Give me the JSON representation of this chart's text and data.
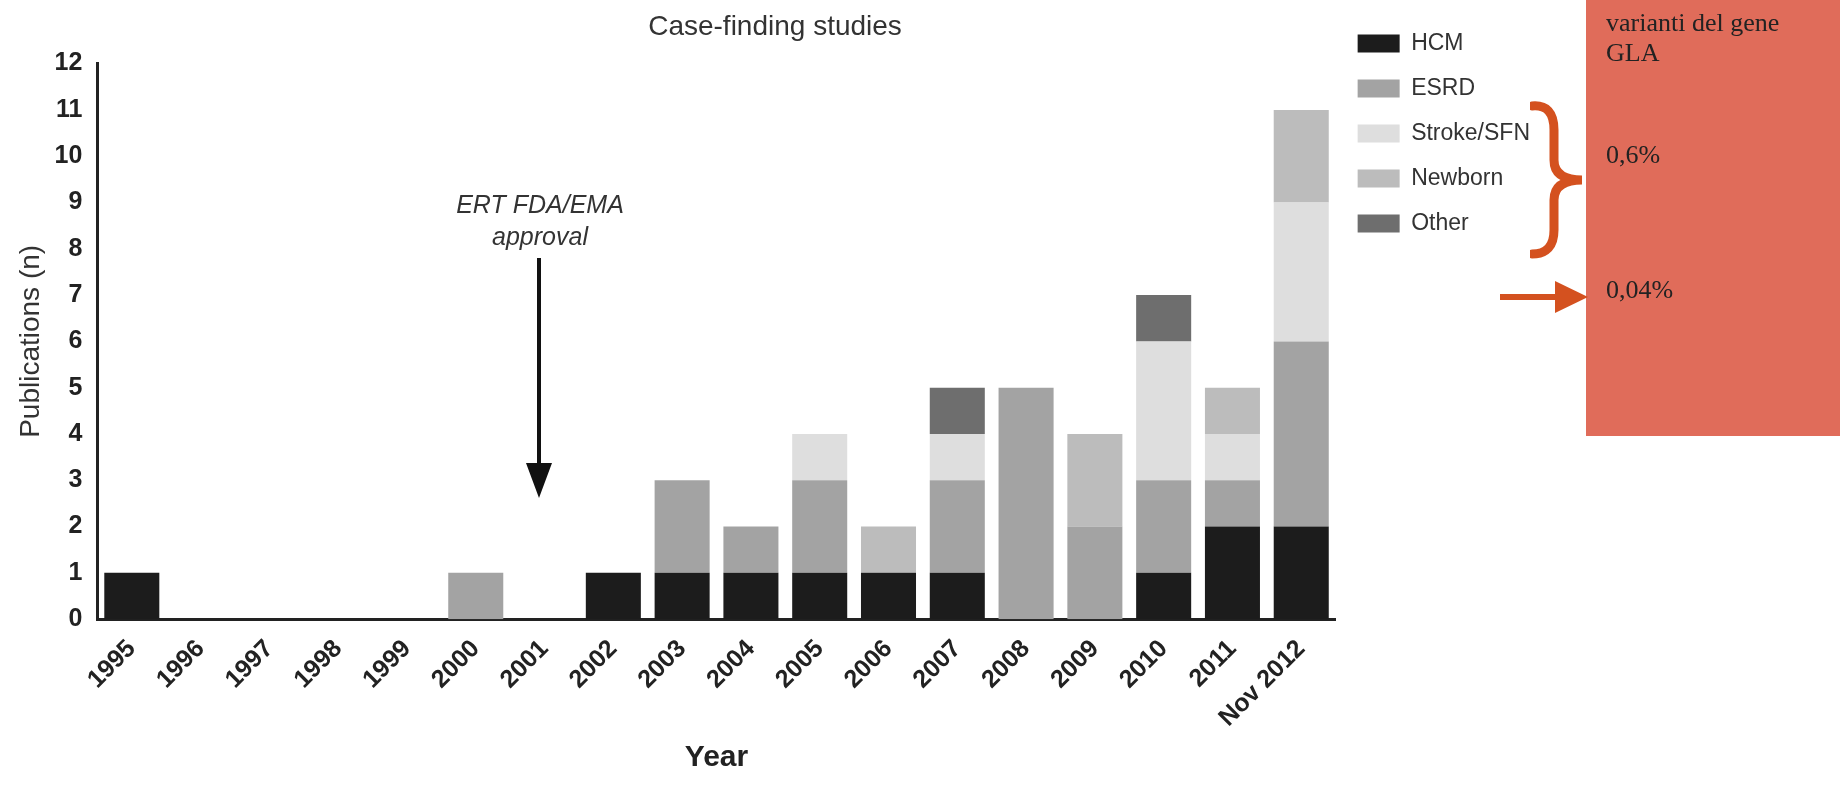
{
  "chart_data": {
    "type": "bar",
    "title": "Case-finding studies",
    "xlabel": "Year",
    "ylabel": "Publications (n)",
    "stacked": true,
    "legend": "right",
    "grid": false,
    "categories": [
      "1995",
      "1996",
      "1997",
      "1998",
      "1999",
      "2000",
      "2001",
      "2002",
      "2003",
      "2004",
      "2005",
      "2006",
      "2007",
      "2008",
      "2009",
      "2010",
      "2011",
      "Nov 2012"
    ],
    "series": [
      {
        "name": "HCM",
        "color": "#1c1c1c",
        "values": [
          1,
          0,
          0,
          0,
          0,
          0,
          0,
          1,
          1,
          1,
          1,
          1,
          1,
          0,
          0,
          1,
          2,
          2
        ]
      },
      {
        "name": "ESRD",
        "color": "#a3a3a3",
        "values": [
          0,
          0,
          0,
          0,
          0,
          1,
          0,
          0,
          2,
          1,
          2,
          0,
          2,
          5,
          2,
          2,
          1,
          4
        ]
      },
      {
        "name": "Stroke/SFN",
        "color": "#dedede",
        "values": [
          0,
          0,
          0,
          0,
          0,
          0,
          0,
          0,
          0,
          0,
          1,
          0,
          1,
          0,
          0,
          3,
          1,
          3
        ]
      },
      {
        "name": "Newborn",
        "color": "#bcbcbc",
        "values": [
          0,
          0,
          0,
          0,
          0,
          0,
          0,
          0,
          0,
          0,
          0,
          1,
          0,
          0,
          2,
          0,
          1,
          2
        ]
      },
      {
        "name": "Other",
        "color": "#6e6e6e",
        "values": [
          0,
          0,
          0,
          0,
          0,
          0,
          0,
          0,
          0,
          0,
          0,
          0,
          1,
          0,
          0,
          1,
          0,
          0
        ]
      }
    ],
    "ylim": [
      0,
      12
    ],
    "yticks": [
      0,
      1,
      2,
      3,
      4,
      5,
      6,
      7,
      8,
      9,
      10,
      11,
      12
    ],
    "annotations": [
      "ERT FDA/EMA approval",
      "varianti del gene GLA",
      "0,6%",
      "0,04%"
    ]
  }
}
